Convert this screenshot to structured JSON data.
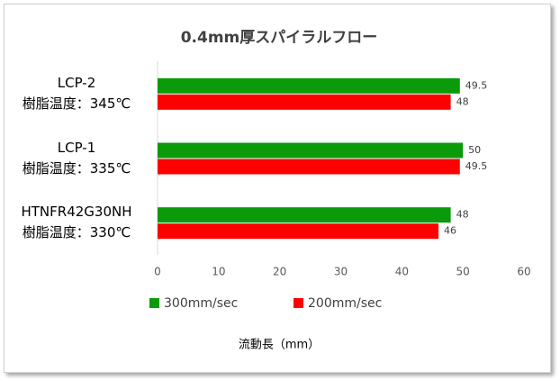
{
  "chart_data": {
    "type": "hbar",
    "title": "0.4mm厚スパイラルフロー",
    "x_label": "流動長（mm）",
    "categories": [
      "LCP-2\n樹脂温度：345℃",
      "LCP-1\n樹脂温度：335℃",
      "HTNFR42G30NH\n樹脂温度：330℃"
    ],
    "series": [
      {
        "name": "300mm/sec",
        "color": "#0a9a0a",
        "values": [
          49.5,
          50,
          48
        ]
      },
      {
        "name": "200mm/sec",
        "color": "#ff0000",
        "values": [
          48,
          49.5,
          46
        ]
      }
    ],
    "xlim": [
      0,
      60
    ],
    "xticks": [
      0,
      10,
      20,
      30,
      40,
      50,
      60
    ],
    "legend": "bottom"
  }
}
